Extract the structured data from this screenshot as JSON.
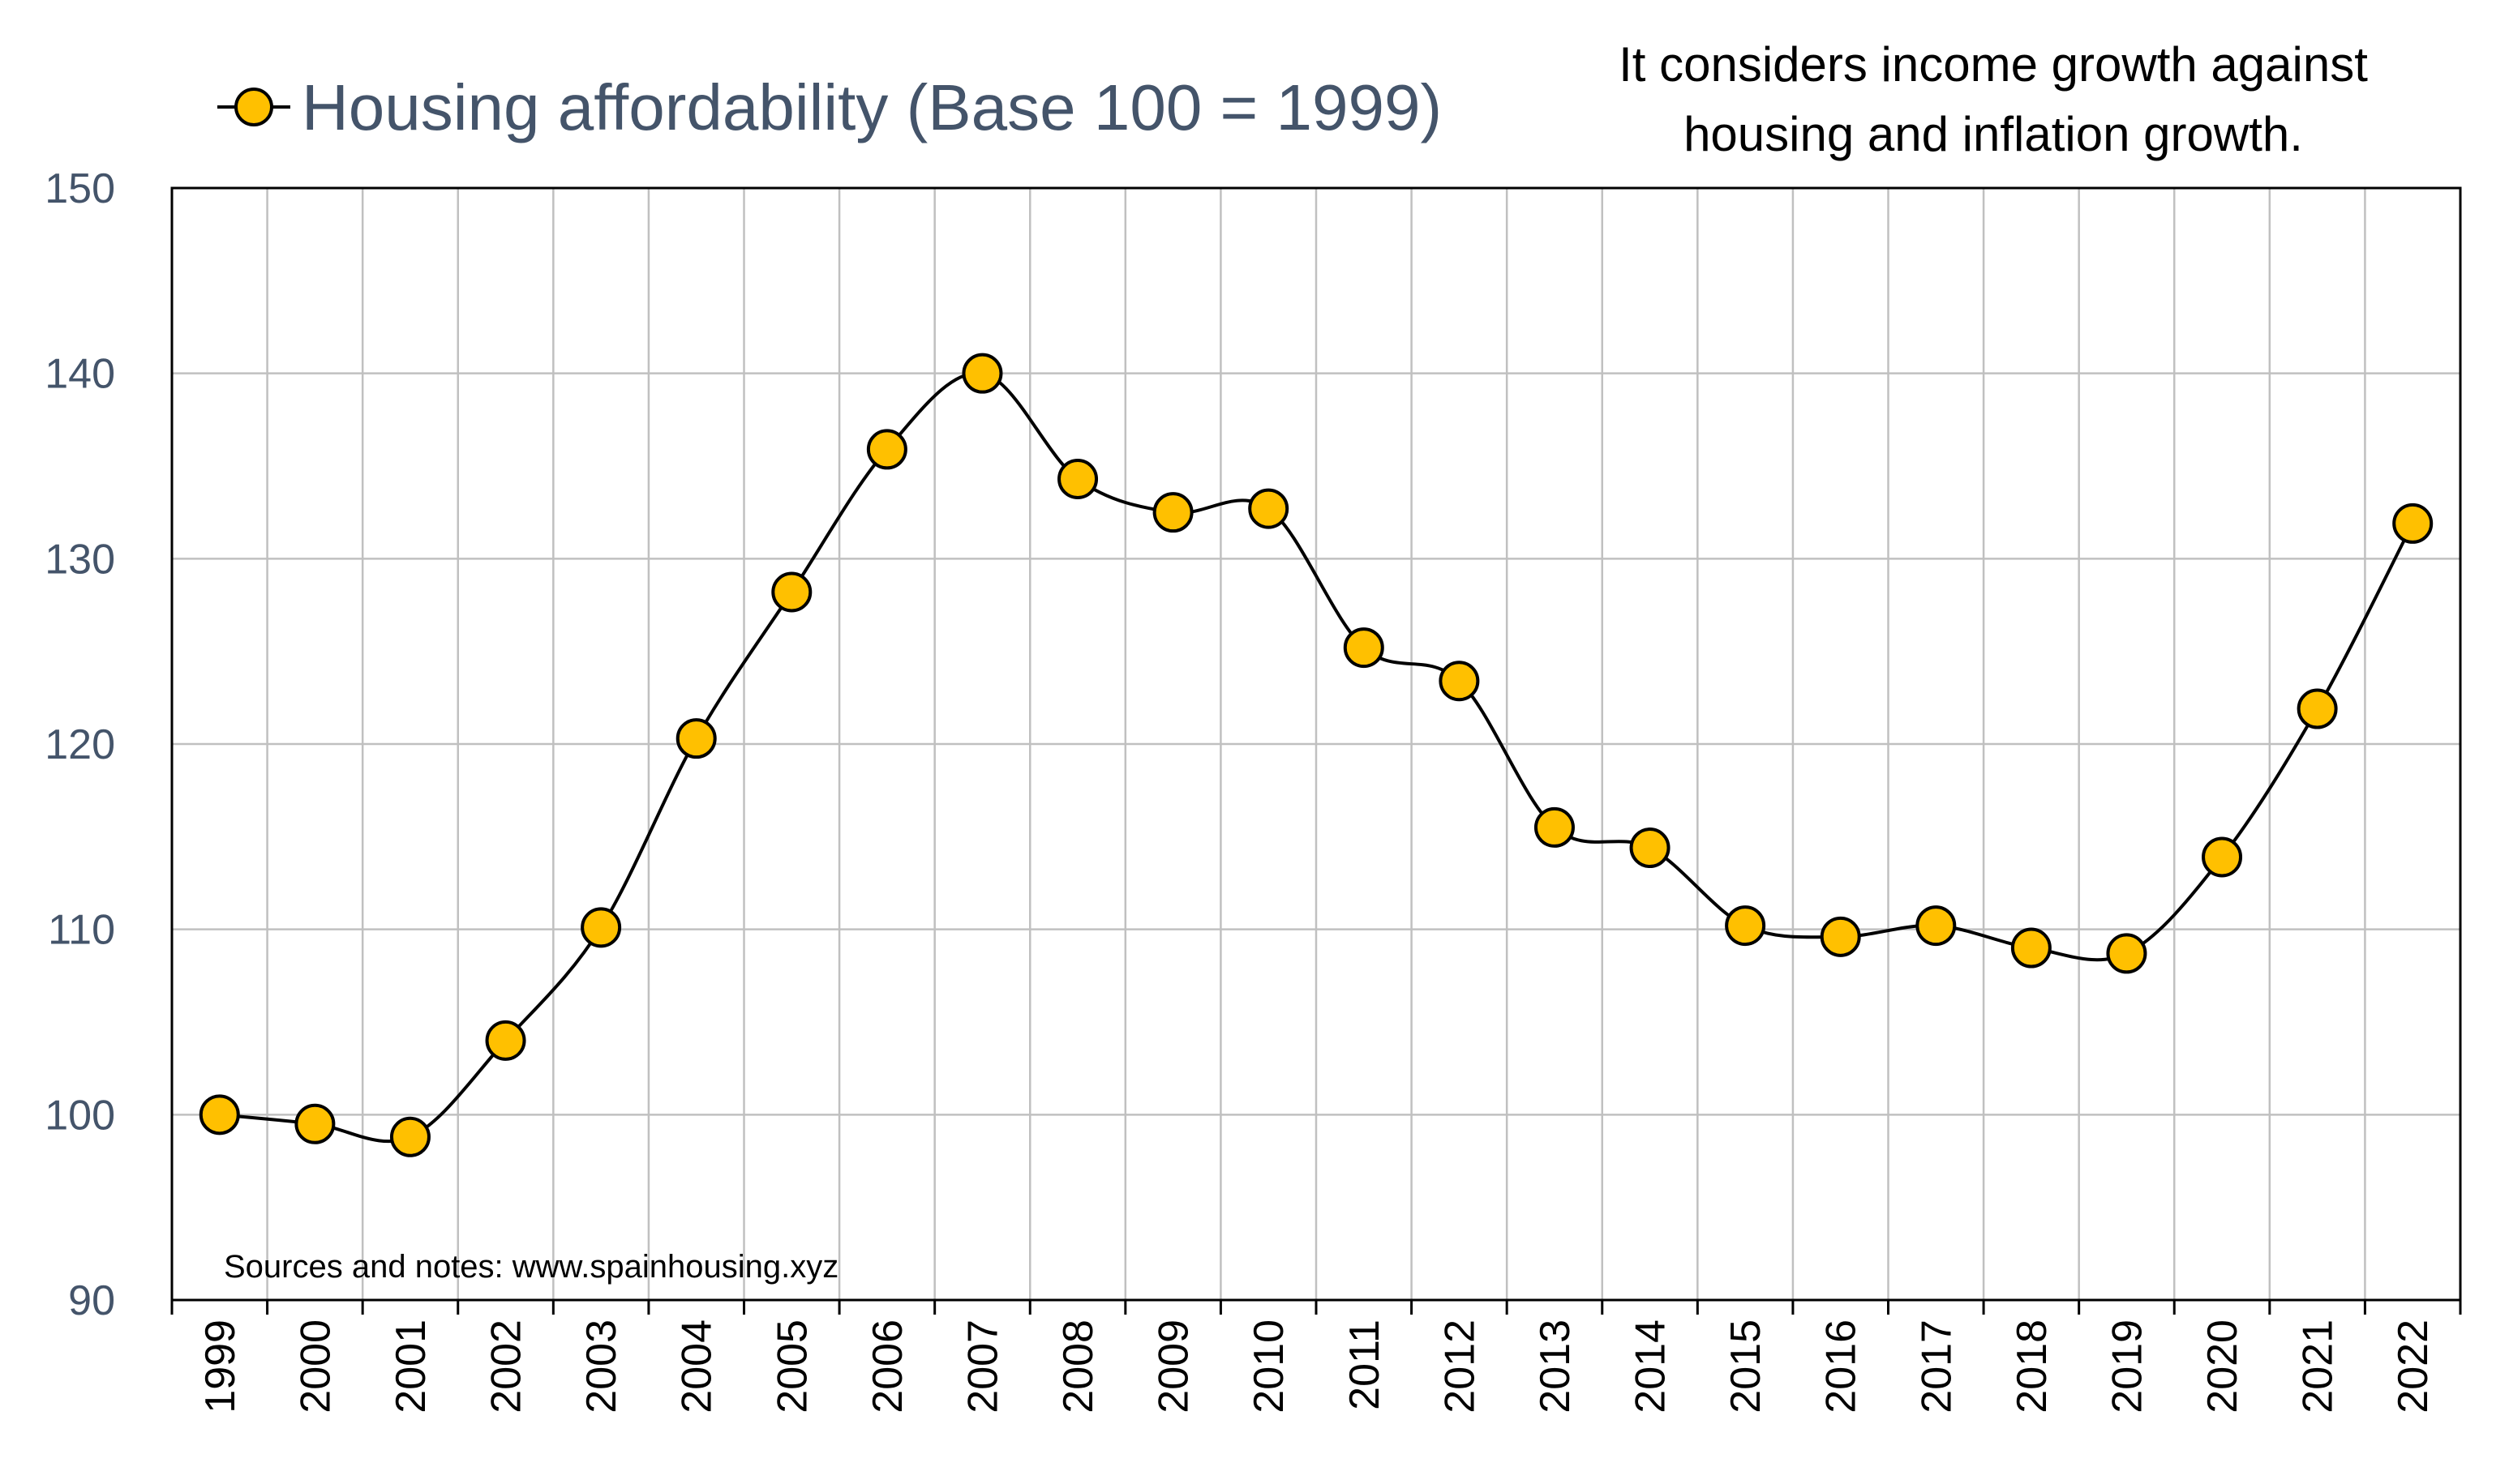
{
  "chart_data": {
    "type": "line",
    "smooth": true,
    "categories": [
      "1999",
      "2000",
      "2001",
      "2002",
      "2003",
      "2004",
      "2005",
      "2006",
      "2007",
      "2008",
      "2009",
      "2010",
      "2011",
      "2012",
      "2013",
      "2014",
      "2015",
      "2016",
      "2017",
      "2018",
      "2019",
      "2020",
      "2021",
      "2022"
    ],
    "series": [
      {
        "name": "Housing affordability (Base 100 = 1999)",
        "values": [
          100.0,
          99.5,
          98.8,
          104.0,
          110.1,
          120.3,
          128.2,
          135.9,
          140.0,
          134.3,
          132.5,
          132.7,
          125.2,
          123.4,
          115.5,
          114.4,
          110.2,
          109.6,
          110.2,
          109.0,
          108.7,
          113.9,
          121.9,
          131.9
        ]
      }
    ],
    "ylim": [
      90,
      150
    ],
    "yticks": [
      90,
      100,
      110,
      120,
      130,
      140,
      150
    ],
    "xlabel": "",
    "ylabel": "",
    "grid": true,
    "legend_position": "top-left",
    "annotation": "It considers income growth against housing and inflation growth.",
    "note": "Sources and notes: www.spainhousing.xyz",
    "colors": {
      "line": "#000000",
      "marker_fill": "#FFC000",
      "marker_stroke": "#000000",
      "grid": "#C0C0C0",
      "axis_text": "#44546A"
    }
  },
  "annotation_lines": [
    "It considers income growth against",
    "housing and inflation growth."
  ]
}
